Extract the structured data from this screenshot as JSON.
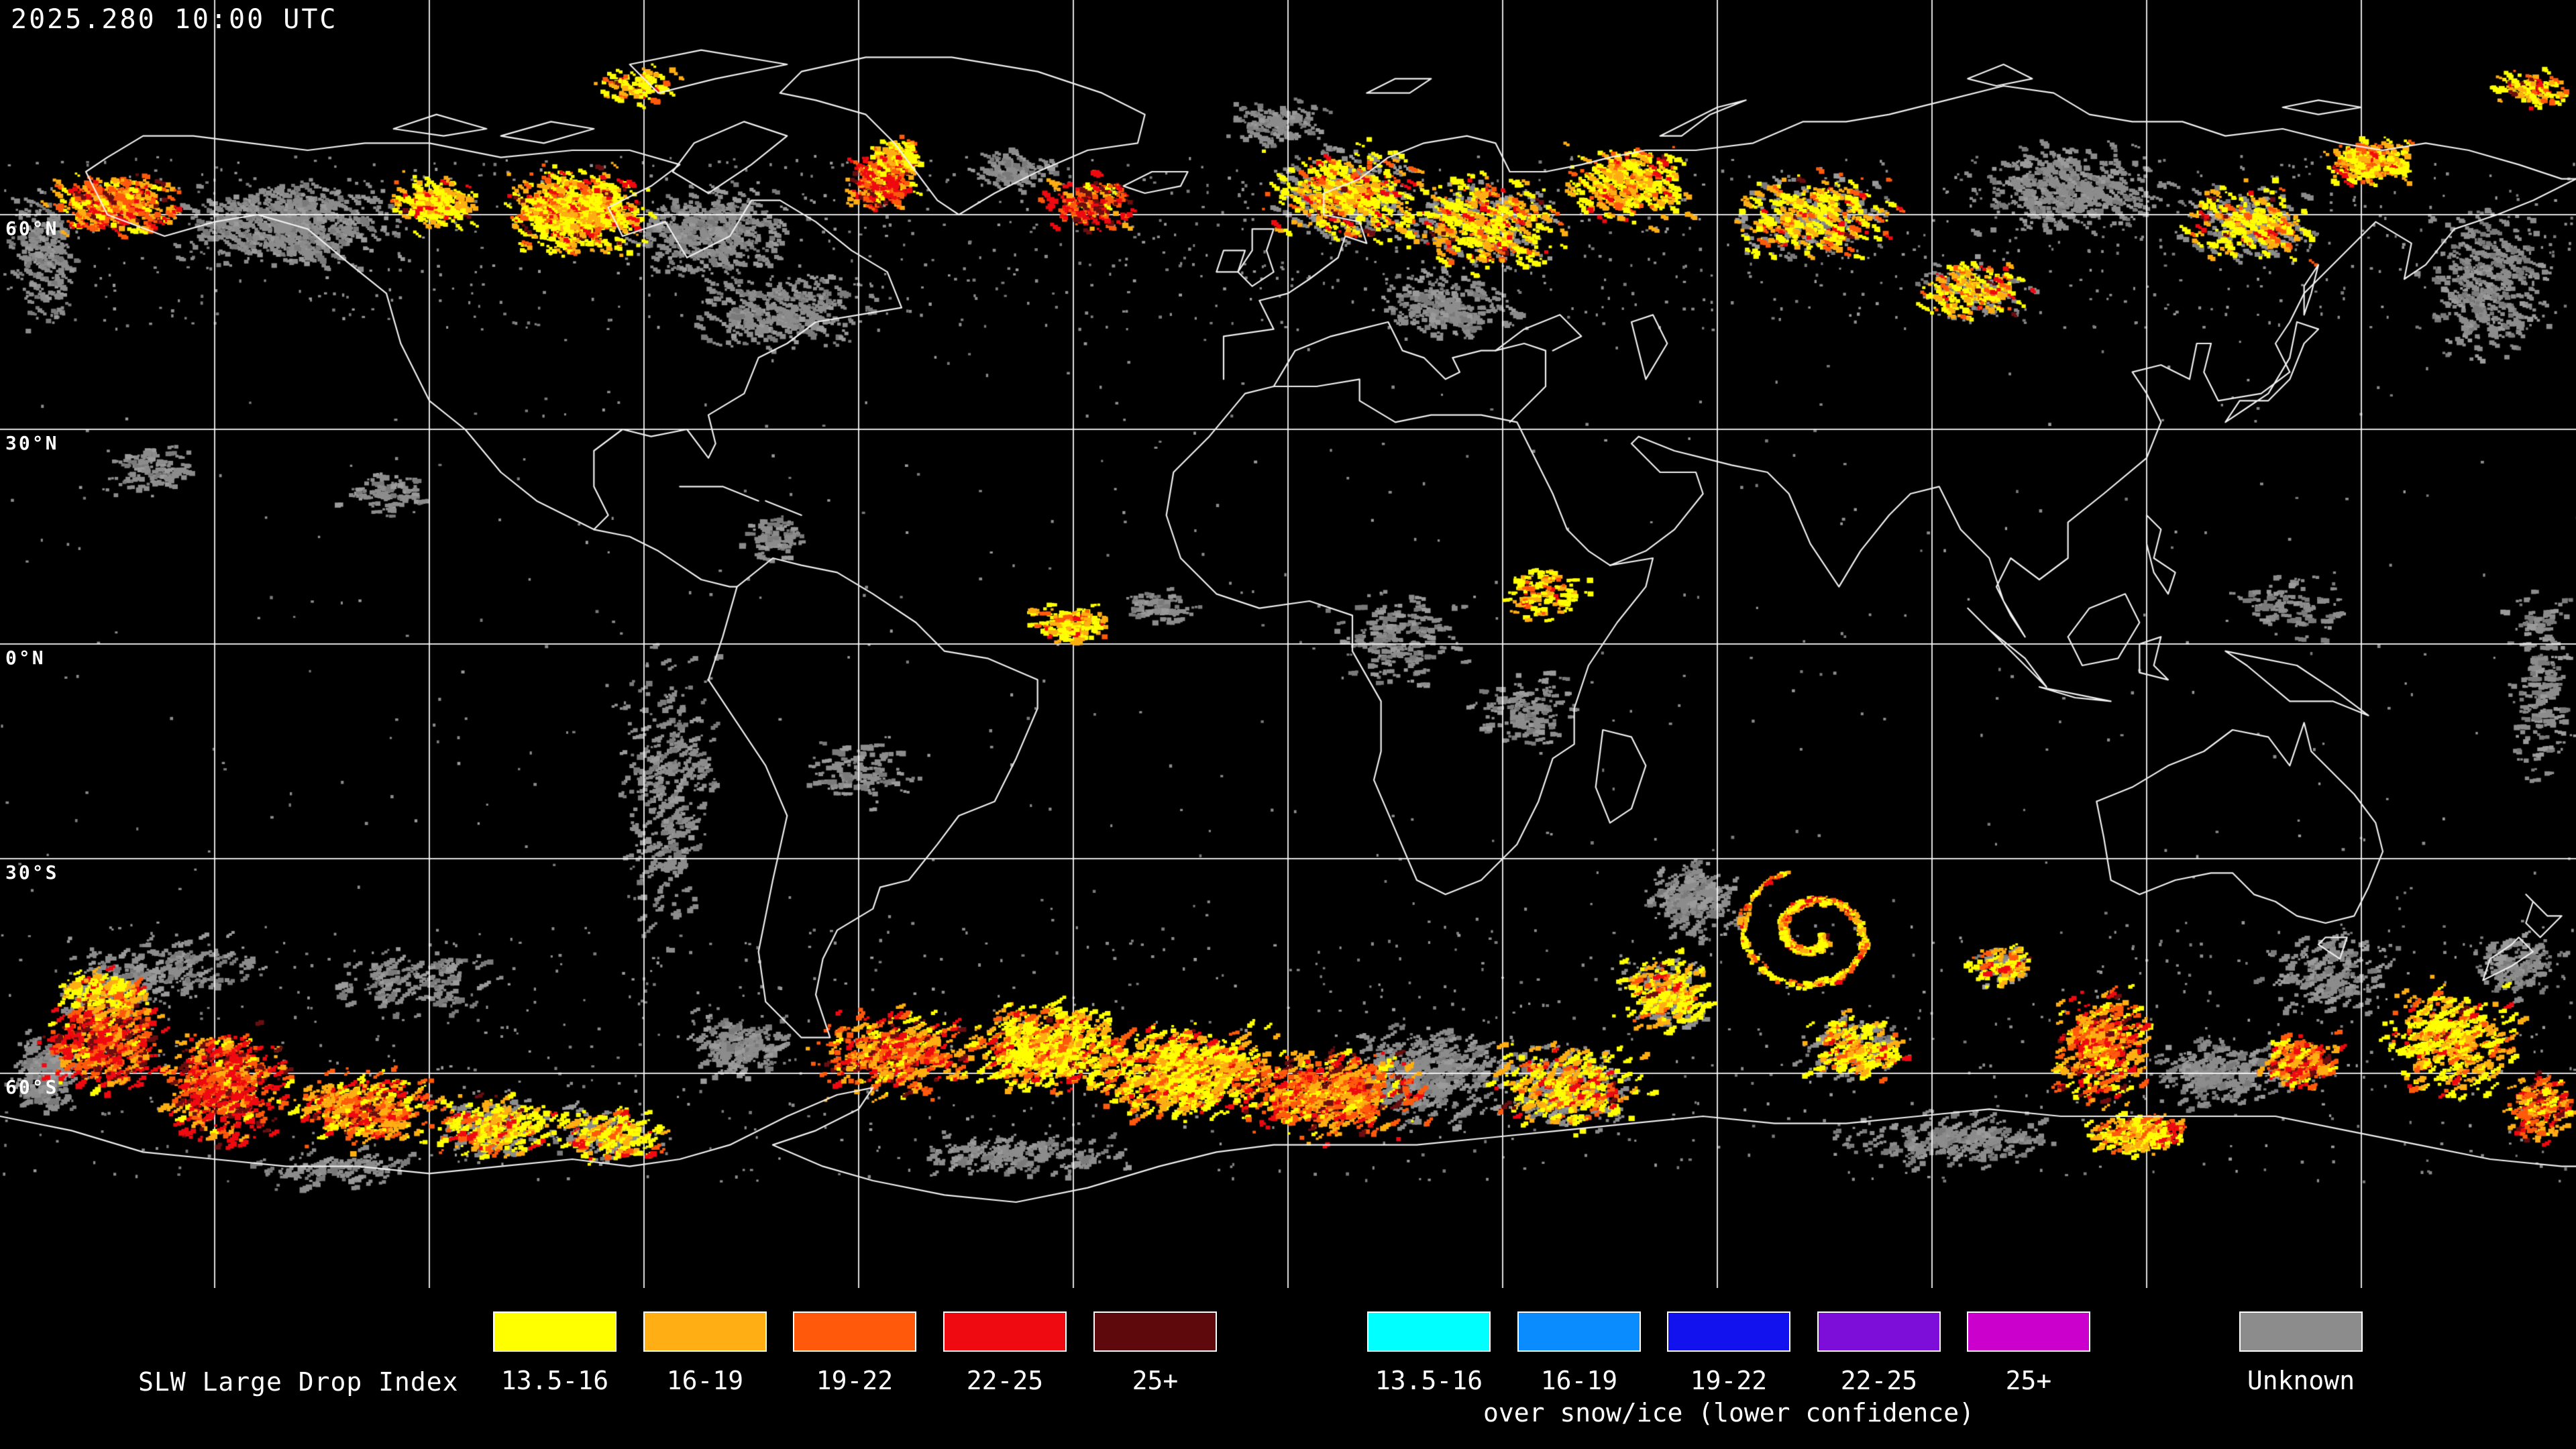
{
  "header": {
    "timestamp": "2025.280 10:00 UTC"
  },
  "map": {
    "latitude_labels": [
      {
        "label": "60°N"
      },
      {
        "label": "30°N"
      },
      {
        "label": "0°N"
      },
      {
        "label": "30°S"
      },
      {
        "label": "60°S"
      }
    ]
  },
  "legend": {
    "title": "SLW Large Drop Index",
    "clear": {
      "items": [
        {
          "label": "13.5-16",
          "color": "#FFFF00"
        },
        {
          "label": "16-19",
          "color": "#FFAE13"
        },
        {
          "label": "19-22",
          "color": "#FF5A0C"
        },
        {
          "label": "22-25",
          "color": "#EE0A10"
        },
        {
          "label": "25+",
          "color": "#5E0A0D"
        }
      ]
    },
    "snow_ice": {
      "caption": "over snow/ice (lower confidence)",
      "items": [
        {
          "label": "13.5-16",
          "color": "#00FFFF"
        },
        {
          "label": "16-19",
          "color": "#0A8CFF"
        },
        {
          "label": "19-22",
          "color": "#1212EE"
        },
        {
          "label": "22-25",
          "color": "#7D0DD8"
        },
        {
          "label": "25+",
          "color": "#CC00CC"
        }
      ]
    },
    "unknown": {
      "label": "Unknown",
      "color": "#8C8C8C"
    }
  }
}
